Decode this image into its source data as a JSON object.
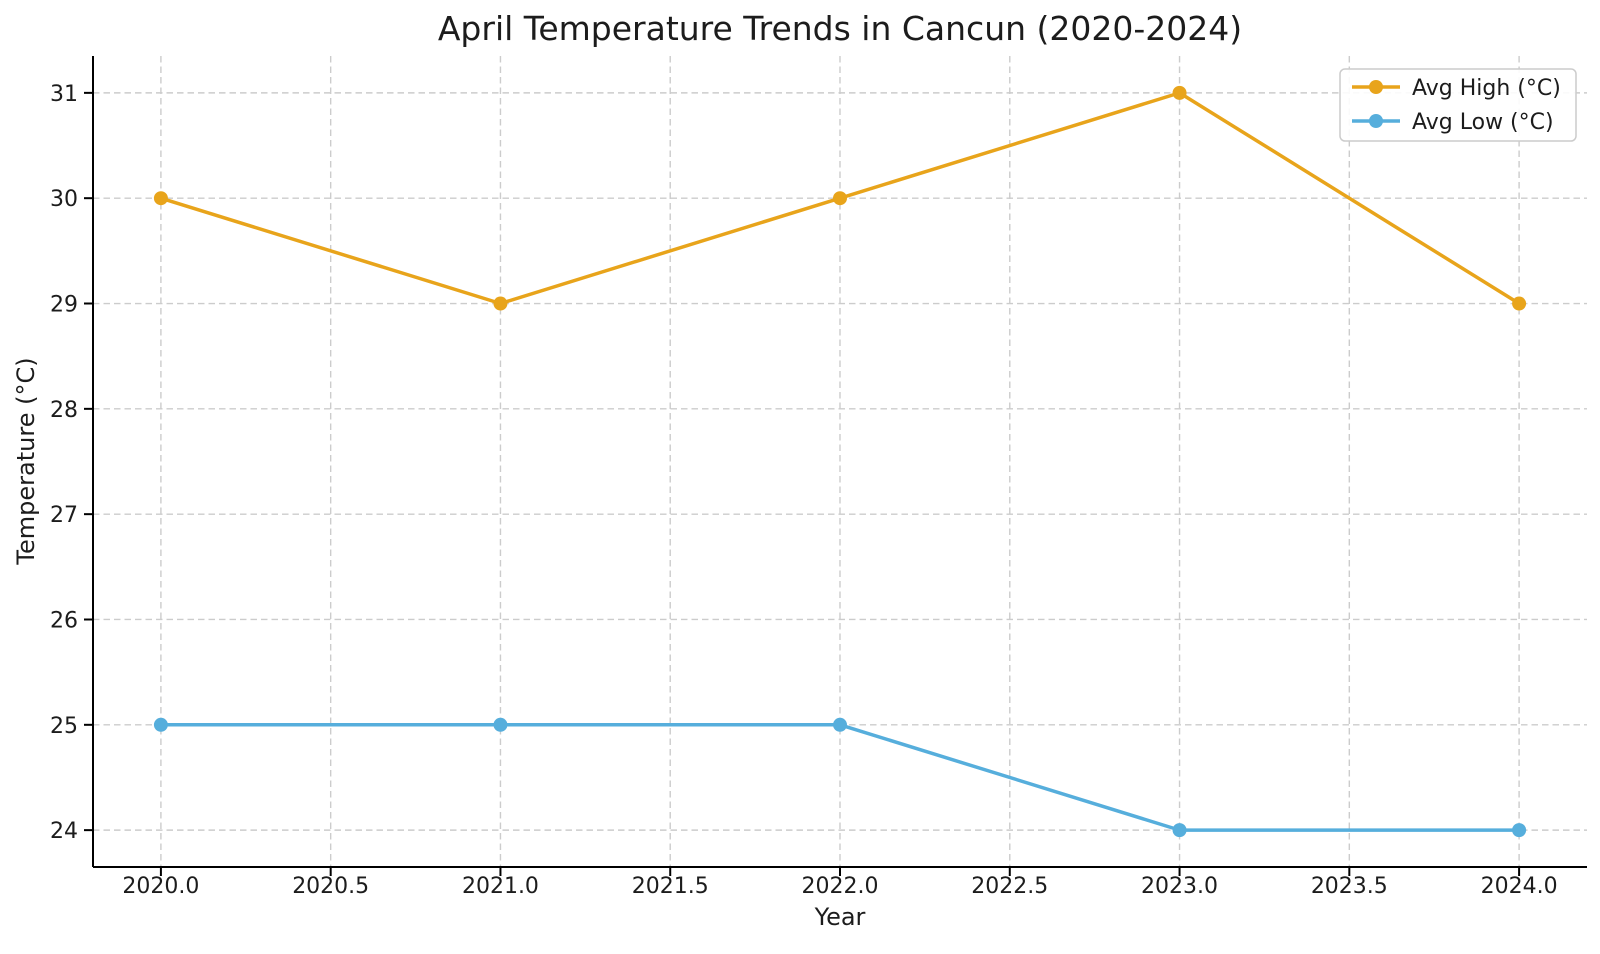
{
  "chart_data": {
    "type": "line",
    "title": "April Temperature Trends in Cancun (2020-2024)",
    "xlabel": "Year",
    "ylabel": "Temperature (°C)",
    "x": [
      2020,
      2021,
      2022,
      2023,
      2024
    ],
    "series": [
      {
        "name": "Avg High (°C)",
        "values": [
          30,
          29,
          30,
          31,
          29
        ],
        "color": "#E8A41B"
      },
      {
        "name": "Avg Low (°C)",
        "values": [
          25,
          25,
          25,
          24,
          24
        ],
        "color": "#56AEDC"
      }
    ],
    "xlim": [
      2019.8,
      2024.2
    ],
    "ylim": [
      23.65,
      31.35
    ],
    "xticks": [
      {
        "value": 2020.0,
        "label": "2020.0"
      },
      {
        "value": 2020.5,
        "label": "2020.5"
      },
      {
        "value": 2021.0,
        "label": "2021.0"
      },
      {
        "value": 2021.5,
        "label": "2021.5"
      },
      {
        "value": 2022.0,
        "label": "2022.0"
      },
      {
        "value": 2022.5,
        "label": "2022.5"
      },
      {
        "value": 2023.0,
        "label": "2023.0"
      },
      {
        "value": 2023.5,
        "label": "2023.5"
      },
      {
        "value": 2024.0,
        "label": "2024.0"
      }
    ],
    "yticks": [
      {
        "value": 24,
        "label": "24"
      },
      {
        "value": 25,
        "label": "25"
      },
      {
        "value": 26,
        "label": "26"
      },
      {
        "value": 27,
        "label": "27"
      },
      {
        "value": 28,
        "label": "28"
      },
      {
        "value": 29,
        "label": "29"
      },
      {
        "value": 30,
        "label": "30"
      },
      {
        "value": 31,
        "label": "31"
      }
    ],
    "grid": true,
    "legend_position": "upper-right",
    "colors": {
      "background": "#ffffff",
      "grid": "#cccccc",
      "spine": "#000000",
      "text": "#1c1c1c",
      "legend_border": "#cccccc",
      "legend_fill": "#ffffff"
    }
  }
}
